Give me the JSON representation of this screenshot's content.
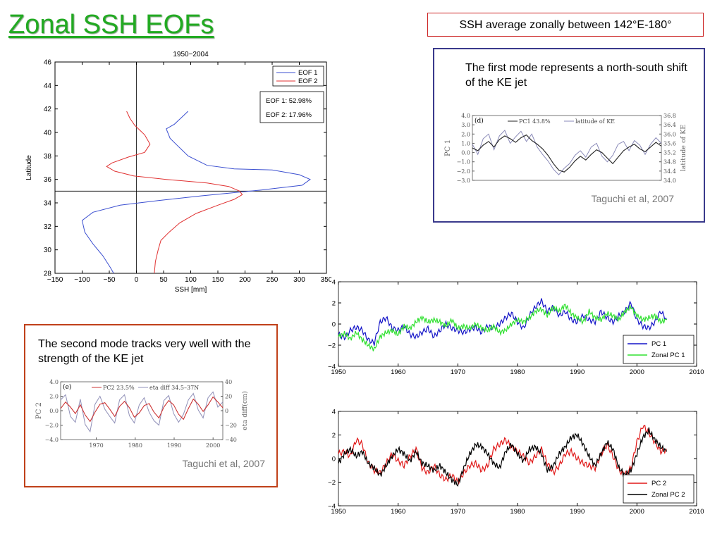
{
  "slide": {
    "title": "Zonal SSH EOFs",
    "subtitle_box": "SSH average zonally between 142°E-180°",
    "colors": {
      "title": "#22aa22",
      "box1_border": "#3a3a8c",
      "box2_border": "#c0411a",
      "note_border": "#cc2222"
    }
  },
  "card1": {
    "text": "The first mode represents a north-south shift of the KE jet",
    "citation": "Taguchi et al, 2007"
  },
  "card2": {
    "text": "The second mode tracks very well with the strength of the KE jet",
    "citation": "Taguchi et al, 2007"
  },
  "chart_data": [
    {
      "id": "eof-profile",
      "type": "line",
      "title": "1950−2004",
      "xlabel": "SSH [mm]",
      "ylabel": "Latitude",
      "xlim": [
        -150,
        350
      ],
      "ylim": [
        28,
        46
      ],
      "xticks": [
        "−150",
        "−100",
        "−50",
        "0",
        "50",
        "100",
        "150",
        "200",
        "250",
        "300",
        "350"
      ],
      "yticks": [
        "28",
        "30",
        "32",
        "34",
        "36",
        "38",
        "40",
        "42",
        "44",
        "46"
      ],
      "annotation": [
        "EOF 1: 52.98%",
        "EOF 2: 17.96%"
      ],
      "reference_lines": {
        "x": 0,
        "y": 35
      },
      "legend_position": "top-right",
      "series": [
        {
          "name": "EOF 1",
          "color": "#3b4fd0",
          "points": [
            [
              95,
              41.8
            ],
            [
              70,
              40.7
            ],
            [
              55,
              40.3
            ],
            [
              62,
              39.5
            ],
            [
              75,
              38.9
            ],
            [
              95,
              38.0
            ],
            [
              130,
              37.2
            ],
            [
              180,
              36.9
            ],
            [
              250,
              36.8
            ],
            [
              300,
              36.4
            ],
            [
              320,
              36.0
            ],
            [
              305,
              35.5
            ],
            [
              230,
              35.1
            ],
            [
              120,
              34.6
            ],
            [
              40,
              34.2
            ],
            [
              -30,
              33.8
            ],
            [
              -80,
              33.2
            ],
            [
              -100,
              32.5
            ],
            [
              -95,
              31.5
            ],
            [
              -80,
              30.5
            ],
            [
              -62,
              29.5
            ],
            [
              -48,
              28.5
            ],
            [
              -42,
              28
            ]
          ]
        },
        {
          "name": "EOF 2",
          "color": "#e03030",
          "points": [
            [
              -18,
              41.8
            ],
            [
              -12,
              41.2
            ],
            [
              -3,
              40.6
            ],
            [
              15,
              39.8
            ],
            [
              25,
              39.0
            ],
            [
              15,
              38.3
            ],
            [
              -15,
              37.9
            ],
            [
              -45,
              37.4
            ],
            [
              -55,
              37.1
            ],
            [
              -40,
              36.7
            ],
            [
              -5,
              36.3
            ],
            [
              55,
              36.0
            ],
            [
              130,
              35.7
            ],
            [
              170,
              35.4
            ],
            [
              190,
              35.0
            ],
            [
              195,
              34.7
            ],
            [
              180,
              34.3
            ],
            [
              150,
              33.8
            ],
            [
              110,
              33.1
            ],
            [
              80,
              32.3
            ],
            [
              60,
              31.5
            ],
            [
              45,
              30.8
            ],
            [
              40,
              30.0
            ],
            [
              35,
              29.0
            ],
            [
              33,
              28.0
            ]
          ]
        }
      ]
    },
    {
      "id": "taguchi-pc1",
      "type": "line",
      "panel_label": "(d)",
      "ylabel": "PC 1",
      "y2label": "latitude of KE",
      "yticks": [
        "4.0",
        "3.0",
        "2.0",
        "1.0",
        "0.0",
        "−1.0",
        "−2.0",
        "−3.0"
      ],
      "y2ticks": [
        "36.8",
        "36.4",
        "36.0",
        "35.6",
        "35.2",
        "34.8",
        "34.4",
        "34.0"
      ],
      "series": [
        {
          "name": "PC1 43.8%",
          "color": "#222222",
          "values": [
            0.5,
            0.2,
            0.8,
            1.2,
            0.6,
            1.4,
            1.8,
            1.5,
            1.1,
            1.6,
            1.9,
            1.3,
            0.9,
            0.4,
            -0.3,
            -1.2,
            -1.9,
            -2.1,
            -1.6,
            -0.9,
            -0.4,
            -0.8,
            -0.2,
            0.3,
            0.0,
            -0.6,
            -1.2,
            -0.5,
            0.2,
            0.6,
            0.9,
            0.4,
            0.1,
            0.6,
            1.1,
            0.7
          ]
        },
        {
          "name": "latitude of KE",
          "color": "#8a8ab8",
          "values": [
            0.9,
            -0.2,
            1.5,
            2.0,
            0.3,
            1.8,
            2.4,
            1.0,
            1.7,
            2.3,
            1.2,
            2.0,
            0.6,
            -0.2,
            -0.9,
            -1.8,
            -2.4,
            -1.7,
            -1.2,
            -0.3,
            0.2,
            -0.5,
            0.6,
            1.0,
            -0.4,
            -1.0,
            -0.3,
            0.9,
            1.2,
            0.2,
            1.3,
            0.8,
            -0.2,
            0.9,
            1.6,
            1.0
          ]
        }
      ]
    },
    {
      "id": "taguchi-pc2",
      "type": "line",
      "panel_label": "(e)",
      "ylabel": "PC 2",
      "y2label": "eta diff(cm)",
      "yticks": [
        "4.0",
        "2.0",
        "0.0",
        "−2.0",
        "−4.0"
      ],
      "y2ticks": [
        "40",
        "20",
        "0",
        "−20",
        "−40"
      ],
      "xticks": [
        "1970",
        "1980",
        "1990",
        "2000"
      ],
      "series": [
        {
          "name": "PC2 23.5%",
          "color": "#cc3333",
          "values": [
            0.3,
            1.2,
            0.5,
            -0.4,
            0.8,
            -0.6,
            -1.5,
            -0.2,
            0.9,
            1.1,
            0.2,
            -0.8,
            0.6,
            1.3,
            0.4,
            -0.9,
            -0.3,
            0.7,
            1.0,
            -0.2,
            -1.0,
            0.5,
            1.4,
            0.8,
            -0.5,
            -1.2,
            0.3,
            1.6,
            0.9,
            -0.1,
            0.8,
            1.9,
            1.2,
            0.4
          ]
        },
        {
          "name": "eta diff 34.5–37N",
          "color": "#9090b8",
          "values": [
            1.5,
            2.2,
            -0.8,
            -1.6,
            1.6,
            -1.9,
            -2.9,
            0.9,
            2.0,
            0.2,
            -0.8,
            -1.7,
            1.5,
            2.2,
            -0.7,
            -1.7,
            0.8,
            1.8,
            -0.2,
            -1.4,
            -2.0,
            1.4,
            2.1,
            -0.4,
            -1.6,
            -0.5,
            1.5,
            2.4,
            0.1,
            -1.0,
            1.8,
            2.6,
            0.5,
            1.2
          ]
        }
      ]
    },
    {
      "id": "pc1-zonal",
      "type": "line",
      "xlim": [
        1950,
        2010
      ],
      "ylim": [
        -4,
        4
      ],
      "xticks": [
        "1950",
        "1960",
        "1970",
        "1980",
        "1990",
        "2000",
        "2010"
      ],
      "yticks": [
        "−4",
        "−2",
        "0",
        "2",
        "4"
      ],
      "legend_position": "bottom-right",
      "series": [
        {
          "name": "PC 1",
          "color": "#1414c8",
          "x": [
            1950,
            1951,
            1952,
            1953,
            1954,
            1955,
            1956,
            1957,
            1958,
            1959,
            1960,
            1961,
            1962,
            1963,
            1964,
            1965,
            1966,
            1967,
            1968,
            1969,
            1970,
            1971,
            1972,
            1973,
            1974,
            1975,
            1976,
            1977,
            1978,
            1979,
            1980,
            1981,
            1982,
            1983,
            1984,
            1985,
            1986,
            1987,
            1988,
            1989,
            1990,
            1991,
            1992,
            1993,
            1994,
            1995,
            1996,
            1997,
            1998,
            1999,
            2000,
            2001,
            2002,
            2003,
            2004,
            2005
          ],
          "y": [
            -1.0,
            -1.3,
            -0.6,
            -0.3,
            -0.6,
            -1.5,
            -1.8,
            0.2,
            0.6,
            -0.4,
            -0.6,
            -0.2,
            -1.0,
            -1.2,
            -0.8,
            -0.4,
            -1.2,
            -0.6,
            0.0,
            -0.4,
            -0.6,
            -0.8,
            -0.5,
            -0.3,
            -0.8,
            -0.2,
            -0.4,
            0.0,
            0.6,
            1.0,
            0.2,
            -0.4,
            0.8,
            1.6,
            2.2,
            1.2,
            1.6,
            0.8,
            1.2,
            0.4,
            0.2,
            0.8,
            0.4,
            0.2,
            1.2,
            0.6,
            0.2,
            0.8,
            1.2,
            2.0,
            0.4,
            -0.2,
            -0.4,
            0.2,
            1.2,
            0.4
          ]
        },
        {
          "name": "Zonal PC 1",
          "color": "#30e030",
          "x": [
            1950,
            1951,
            1952,
            1953,
            1954,
            1955,
            1956,
            1957,
            1958,
            1959,
            1960,
            1961,
            1962,
            1963,
            1964,
            1965,
            1966,
            1967,
            1968,
            1969,
            1970,
            1971,
            1972,
            1973,
            1974,
            1975,
            1976,
            1977,
            1978,
            1979,
            1980,
            1981,
            1982,
            1983,
            1984,
            1985,
            1986,
            1987,
            1988,
            1989,
            1990,
            1991,
            1992,
            1993,
            1994,
            1995,
            1996,
            1997,
            1998,
            1999,
            2000,
            2001,
            2002,
            2003,
            2004,
            2005
          ],
          "y": [
            -1.2,
            -0.9,
            -1.4,
            -0.8,
            -1.5,
            -2.0,
            -2.4,
            -1.2,
            -0.8,
            -0.6,
            -1.0,
            -0.2,
            -0.4,
            0.2,
            0.6,
            0.2,
            0.4,
            0.2,
            -0.2,
            0.4,
            -0.4,
            -0.2,
            -0.4,
            0.0,
            -0.4,
            -0.6,
            -0.2,
            -0.8,
            -0.6,
            0.0,
            0.4,
            0.2,
            0.6,
            1.2,
            1.4,
            0.8,
            1.6,
            1.2,
            1.8,
            1.0,
            0.6,
            0.2,
            1.2,
            0.6,
            0.4,
            1.0,
            0.8,
            0.4,
            1.2,
            1.6,
            0.8,
            0.4,
            0.6,
            0.8,
            0.2,
            0.4
          ]
        }
      ]
    },
    {
      "id": "pc2-zonal",
      "type": "line",
      "xlim": [
        1950,
        2010
      ],
      "ylim": [
        -4,
        4
      ],
      "xticks": [
        "1950",
        "1960",
        "1970",
        "1980",
        "1990",
        "2000",
        "2010"
      ],
      "yticks": [
        "−4",
        "−2",
        "0",
        "2",
        "4"
      ],
      "legend_position": "bottom-right",
      "series": [
        {
          "name": "PC 2",
          "color": "#e01818",
          "x": [
            1950,
            1951,
            1952,
            1953,
            1954,
            1955,
            1956,
            1957,
            1958,
            1959,
            1960,
            1961,
            1962,
            1963,
            1964,
            1965,
            1966,
            1967,
            1968,
            1969,
            1970,
            1971,
            1972,
            1973,
            1974,
            1975,
            1976,
            1977,
            1978,
            1979,
            1980,
            1981,
            1982,
            1983,
            1984,
            1985,
            1986,
            1987,
            1988,
            1989,
            1990,
            1991,
            1992,
            1993,
            1994,
            1995,
            1996,
            1997,
            1998,
            1999,
            2000,
            2001,
            2002,
            2003,
            2004,
            2005
          ],
          "y": [
            0.4,
            0.6,
            0.2,
            1.6,
            1.2,
            -0.4,
            -1.0,
            -1.2,
            -0.4,
            0.4,
            -0.2,
            -0.6,
            0.2,
            0.8,
            -0.8,
            -1.2,
            -0.6,
            -1.4,
            -1.8,
            -1.4,
            -2.0,
            -1.2,
            -0.6,
            -0.4,
            -1.0,
            -0.6,
            0.8,
            1.2,
            1.6,
            1.0,
            0.6,
            0.2,
            -0.4,
            0.2,
            0.8,
            -0.4,
            -1.2,
            -0.6,
            0.4,
            0.6,
            0.0,
            -0.4,
            -0.6,
            -0.8,
            0.4,
            1.2,
            0.2,
            -1.0,
            -1.4,
            -0.8,
            1.4,
            2.8,
            2.2,
            1.4,
            0.6,
            0.8
          ]
        },
        {
          "name": "Zonal PC 2",
          "color": "#000000",
          "x": [
            1950,
            1951,
            1952,
            1953,
            1954,
            1955,
            1956,
            1957,
            1958,
            1959,
            1960,
            1961,
            1962,
            1963,
            1964,
            1965,
            1966,
            1967,
            1968,
            1969,
            1970,
            1971,
            1972,
            1973,
            1974,
            1975,
            1976,
            1977,
            1978,
            1979,
            1980,
            1981,
            1982,
            1983,
            1984,
            1985,
            1986,
            1987,
            1988,
            1989,
            1990,
            1991,
            1992,
            1993,
            1994,
            1995,
            1996,
            1997,
            1998,
            1999,
            2000,
            2001,
            2002,
            2003,
            2004,
            2005
          ],
          "y": [
            -0.4,
            0.4,
            0.8,
            0.2,
            0.6,
            -0.4,
            -0.8,
            -1.4,
            -0.6,
            0.2,
            0.8,
            0.4,
            -0.2,
            0.6,
            -0.4,
            -0.6,
            -1.0,
            -0.6,
            -1.2,
            -1.8,
            -2.2,
            -0.8,
            0.4,
            1.2,
            1.0,
            0.4,
            -0.4,
            -0.8,
            0.6,
            1.2,
            0.4,
            -0.2,
            0.8,
            1.0,
            0.4,
            -1.0,
            -0.6,
            0.4,
            1.0,
            1.8,
            2.0,
            1.2,
            0.2,
            -0.6,
            0.4,
            1.4,
            0.8,
            -0.8,
            -1.4,
            -1.0,
            0.4,
            1.8,
            2.4,
            1.6,
            1.0,
            0.6
          ]
        }
      ]
    }
  ]
}
